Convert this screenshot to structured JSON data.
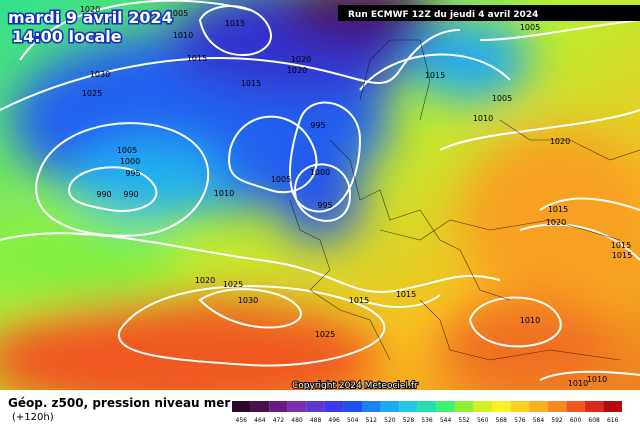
{
  "header": {
    "date": "mardi 9 avril 2024",
    "time": "14:00 locale",
    "run": "Run ECMWF 12Z du jeudi 4 avril 2024"
  },
  "copyright": "Copyright 2024 Meteociel.fr",
  "footer": {
    "title": "Géop. z500, pression niveau mer",
    "lead": "(+120h)"
  },
  "isobar_labels": [
    1020,
    1005,
    1010,
    1015,
    1015,
    1030,
    1025,
    1015,
    1020,
    1020,
    1015,
    1005,
    1005,
    1010,
    995,
    1005,
    1000,
    995,
    990,
    990,
    1010,
    1005,
    1000,
    995,
    1020,
    1015,
    1020,
    1015,
    1015,
    1020,
    1025,
    1030,
    1015,
    1015,
    1010,
    1025,
    1010,
    1010
  ],
  "legend": {
    "values": [
      456,
      464,
      472,
      480,
      488,
      496,
      504,
      512,
      520,
      528,
      536,
      544,
      552,
      560,
      568,
      576,
      584,
      592,
      600,
      608,
      616
    ],
    "colors": [
      "#2a0a2a",
      "#4a1050",
      "#6a1a80",
      "#7a30b0",
      "#5a3ad0",
      "#3a3ae8",
      "#2050f0",
      "#2080f0",
      "#20a8f0",
      "#20c8e0",
      "#20e0b0",
      "#40f070",
      "#90f030",
      "#d0f020",
      "#f8f020",
      "#f8d020",
      "#f8b020",
      "#f88820",
      "#f05820",
      "#e02818",
      "#b00c0c"
    ]
  }
}
